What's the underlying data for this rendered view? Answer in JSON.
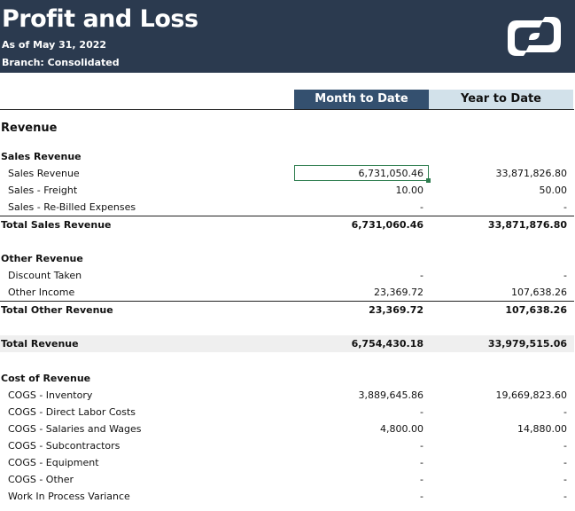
{
  "header": {
    "title": "Profit and Loss",
    "as_of": "As of May 31, 2022",
    "branch": "Branch: Consolidated",
    "logo_icon": "s-logo-icon",
    "bg_color": "#2b3a4f"
  },
  "columns": {
    "mtd": "Month to Date",
    "ytd": "Year to Date"
  },
  "rows": [
    {
      "label": "Revenue",
      "mtd": "",
      "ytd": "",
      "type": "section"
    },
    {
      "label": "Sales Revenue",
      "mtd": "",
      "ytd": "",
      "type": "group"
    },
    {
      "label": "Sales Revenue",
      "mtd": "6,731,050.46",
      "ytd": "33,871,826.80",
      "type": "item"
    },
    {
      "label": "Sales - Freight",
      "mtd": "10.00",
      "ytd": "50.00",
      "type": "item"
    },
    {
      "label": "Sales - Re-Billed Expenses",
      "mtd": "-",
      "ytd": "-",
      "type": "item"
    },
    {
      "label": "Total Sales Revenue",
      "mtd": "6,731,060.46",
      "ytd": "33,871,876.80",
      "type": "total"
    },
    {
      "label": "Other Revenue",
      "mtd": "",
      "ytd": "",
      "type": "group"
    },
    {
      "label": "Discount Taken",
      "mtd": "-",
      "ytd": "-",
      "type": "item"
    },
    {
      "label": "Other Income",
      "mtd": "23,369.72",
      "ytd": "107,638.26",
      "type": "item"
    },
    {
      "label": "Total Other Revenue",
      "mtd": "23,369.72",
      "ytd": "107,638.26",
      "type": "total"
    },
    {
      "label": "Total Revenue",
      "mtd": "6,754,430.18",
      "ytd": "33,979,515.06",
      "type": "grand"
    },
    {
      "label": "Cost of Revenue",
      "mtd": "",
      "ytd": "",
      "type": "group"
    },
    {
      "label": "COGS - Inventory",
      "mtd": "3,889,645.86",
      "ytd": "19,669,823.60",
      "type": "item"
    },
    {
      "label": "COGS - Direct Labor Costs",
      "mtd": "-",
      "ytd": "-",
      "type": "item"
    },
    {
      "label": "COGS - Salaries and Wages",
      "mtd": "4,800.00",
      "ytd": "14,880.00",
      "type": "item"
    },
    {
      "label": "COGS - Subcontractors",
      "mtd": "-",
      "ytd": "-",
      "type": "item"
    },
    {
      "label": "COGS - Equipment",
      "mtd": "-",
      "ytd": "-",
      "type": "item"
    },
    {
      "label": "COGS - Other",
      "mtd": "-",
      "ytd": "-",
      "type": "item"
    },
    {
      "label": "Work In Process Variance",
      "mtd": "-",
      "ytd": "-",
      "type": "item"
    }
  ]
}
